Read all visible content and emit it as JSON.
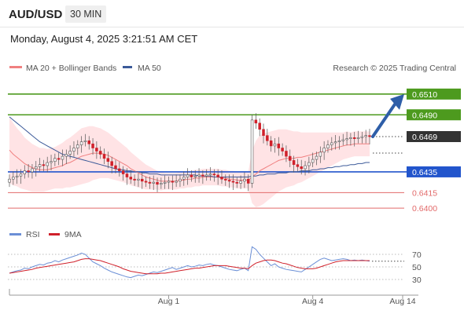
{
  "header": {
    "symbol": "AUD/USD",
    "timeframe": "30 MIN",
    "datetime": "Monday, August 4, 2025 3:21:51 AM CET"
  },
  "legend": {
    "ma20": "MA 20 + Bollinger Bands",
    "ma50": "MA 50",
    "credit": "Research © 2025 Trading Central",
    "rsi": "RSI",
    "rsi_ma": "9MA"
  },
  "colors": {
    "up": "#3f7f3c",
    "down": "#d0202a",
    "ma20": "#f08080",
    "ma50": "#3c5a99",
    "bands": "#ffd9dc",
    "resistance": "#4d9a1e",
    "pivot": "#2255cc",
    "support": "#e26a6a",
    "arrow": "#2e5ea8",
    "current": "#333333",
    "rsi": "#6b8fd6",
    "rsi_ma": "#d0202a"
  },
  "chart_data": [
    {
      "type": "candlestick",
      "ylim": [
        0.6385,
        0.6525
      ],
      "levels": [
        {
          "value": 0.651,
          "label": "0.6510",
          "kind": "resistance"
        },
        {
          "value": 0.649,
          "label": "0.6490",
          "kind": "resistance"
        },
        {
          "value": 0.6469,
          "label": "0.6469",
          "kind": "current"
        },
        {
          "value": 0.6435,
          "label": "0.6435",
          "kind": "pivot"
        },
        {
          "value": 0.6415,
          "label": "0.6415",
          "kind": "support"
        },
        {
          "value": 0.64,
          "label": "0.6400",
          "kind": "support"
        }
      ],
      "x_ticks": [
        "Aug 1",
        "Aug 4",
        "Aug 14"
      ],
      "tick_positions": [
        42,
        80,
        93
      ],
      "candles_count": 96,
      "close": [
        0.6428,
        0.643,
        0.6431,
        0.6433,
        0.6436,
        0.6435,
        0.6438,
        0.644,
        0.6442,
        0.6441,
        0.6444,
        0.6445,
        0.6448,
        0.6447,
        0.645,
        0.6452,
        0.6455,
        0.6458,
        0.6461,
        0.6464,
        0.6465,
        0.6462,
        0.6458,
        0.6455,
        0.6452,
        0.6448,
        0.6445,
        0.6441,
        0.6438,
        0.6436,
        0.6433,
        0.643,
        0.6428,
        0.6427,
        0.6428,
        0.6426,
        0.6425,
        0.6424,
        0.6425,
        0.6423,
        0.6424,
        0.6425,
        0.6426,
        0.6425,
        0.6426,
        0.6428,
        0.643,
        0.6432,
        0.643,
        0.6431,
        0.6432,
        0.6431,
        0.6432,
        0.6433,
        0.6432,
        0.643,
        0.6428,
        0.6427,
        0.6426,
        0.6425,
        0.6424,
        0.6426,
        0.6428,
        0.6424,
        0.6485,
        0.6482,
        0.6476,
        0.647,
        0.6465,
        0.646,
        0.6462,
        0.6458,
        0.6455,
        0.645,
        0.6446,
        0.6442,
        0.644,
        0.6438,
        0.6441,
        0.6444,
        0.6447,
        0.645,
        0.6454,
        0.6458,
        0.6461,
        0.6463,
        0.6464,
        0.6465,
        0.6466,
        0.6467,
        0.6468,
        0.6467,
        0.6468,
        0.6469,
        0.647,
        0.6469
      ],
      "ma20": [
        0.6456,
        0.6452,
        0.6449,
        0.6446,
        0.6443,
        0.6441,
        0.6439,
        0.6438,
        0.6437,
        0.6437,
        0.6437,
        0.6438,
        0.6439,
        0.644,
        0.6441,
        0.6443,
        0.6444,
        0.6446,
        0.6448,
        0.645,
        0.6451,
        0.6452,
        0.6453,
        0.6453,
        0.6453,
        0.6452,
        0.6451,
        0.6449,
        0.6447,
        0.6445,
        0.6443,
        0.6441,
        0.6438,
        0.6436,
        0.6434,
        0.6432,
        0.643,
        0.6429,
        0.6428,
        0.6427,
        0.6426,
        0.6426,
        0.6426,
        0.6426,
        0.6426,
        0.6427,
        0.6427,
        0.6428,
        0.6428,
        0.6429,
        0.6429,
        0.643,
        0.643,
        0.643,
        0.643,
        0.643,
        0.6429,
        0.6429,
        0.6428,
        0.6428,
        0.6427,
        0.6427,
        0.6427,
        0.6427,
        0.643,
        0.6433,
        0.6436,
        0.6438,
        0.644,
        0.6442,
        0.6444,
        0.6446,
        0.6447,
        0.6448,
        0.6448,
        0.6448,
        0.6449,
        0.6449,
        0.645,
        0.6451,
        0.6452,
        0.6453,
        0.6454,
        0.6455,
        0.6456,
        0.6457,
        0.6458,
        0.6459,
        0.646,
        0.6461,
        0.6461,
        0.6462,
        0.6462,
        0.6462,
        0.6462,
        0.6462
      ],
      "band_width": [
        0.0032,
        0.003,
        0.0028,
        0.0027,
        0.0025,
        0.0024,
        0.0023,
        0.0022,
        0.0021,
        0.0021,
        0.002,
        0.002,
        0.002,
        0.0021,
        0.0022,
        0.0023,
        0.0024,
        0.0025,
        0.0026,
        0.0027,
        0.0027,
        0.0027,
        0.0026,
        0.0025,
        0.0024,
        0.0023,
        0.0022,
        0.0021,
        0.002,
        0.0019,
        0.0018,
        0.0017,
        0.0016,
        0.0015,
        0.0014,
        0.0013,
        0.0012,
        0.0011,
        0.001,
        0.0009,
        0.0009,
        0.0008,
        0.0008,
        0.0008,
        0.0008,
        0.0008,
        0.0008,
        0.0008,
        0.0008,
        0.0008,
        0.0008,
        0.0008,
        0.0008,
        0.0008,
        0.0008,
        0.0008,
        0.0008,
        0.0008,
        0.0008,
        0.0008,
        0.0008,
        0.0008,
        0.0008,
        0.0008,
        0.0025,
        0.0032,
        0.0034,
        0.0034,
        0.0033,
        0.0032,
        0.0031,
        0.003,
        0.0029,
        0.0028,
        0.0027,
        0.0026,
        0.0025,
        0.0024,
        0.0023,
        0.0022,
        0.0021,
        0.002,
        0.0019,
        0.0018,
        0.0017,
        0.0016,
        0.0015,
        0.0014,
        0.0013,
        0.0013,
        0.0012,
        0.0012,
        0.0012,
        0.0012,
        0.0012,
        0.0012
      ],
      "ma50": [
        0.6488,
        0.6485,
        0.6482,
        0.6479,
        0.6476,
        0.6473,
        0.647,
        0.6467,
        0.6464,
        0.6462,
        0.646,
        0.6458,
        0.6456,
        0.6454,
        0.6452,
        0.6451,
        0.645,
        0.6449,
        0.6448,
        0.6447,
        0.6446,
        0.6445,
        0.6444,
        0.6443,
        0.6442,
        0.6441,
        0.644,
        0.6439,
        0.6438,
        0.6437,
        0.6437,
        0.6436,
        0.6436,
        0.6435,
        0.6435,
        0.6434,
        0.6434,
        0.6433,
        0.6433,
        0.6433,
        0.6432,
        0.6432,
        0.6432,
        0.6432,
        0.6432,
        0.6432,
        0.6432,
        0.6432,
        0.6432,
        0.6432,
        0.6431,
        0.6431,
        0.6431,
        0.6431,
        0.643,
        0.643,
        0.643,
        0.643,
        0.643,
        0.643,
        0.643,
        0.643,
        0.643,
        0.643,
        0.6431,
        0.6431,
        0.6432,
        0.6432,
        0.6433,
        0.6433,
        0.6433,
        0.6434,
        0.6434,
        0.6434,
        0.6435,
        0.6435,
        0.6435,
        0.6436,
        0.6436,
        0.6436,
        0.6437,
        0.6437,
        0.6438,
        0.6438,
        0.6439,
        0.6439,
        0.644,
        0.644,
        0.6441,
        0.6441,
        0.6442,
        0.6442,
        0.6443,
        0.6443,
        0.6444,
        0.6444
      ]
    },
    {
      "type": "line",
      "yticks": [
        70,
        50,
        30
      ],
      "ylim": [
        15,
        85
      ],
      "rsi": [
        40,
        42,
        44,
        45,
        48,
        47,
        50,
        52,
        54,
        53,
        56,
        57,
        60,
        58,
        61,
        63,
        65,
        67,
        69,
        72,
        70,
        64,
        58,
        55,
        52,
        48,
        45,
        42,
        40,
        38,
        36,
        34,
        33,
        35,
        37,
        36,
        38,
        40,
        42,
        41,
        43,
        45,
        47,
        49,
        46,
        48,
        50,
        52,
        50,
        51,
        53,
        52,
        54,
        55,
        53,
        52,
        50,
        48,
        46,
        45,
        44,
        46,
        48,
        44,
        82,
        78,
        70,
        64,
        58,
        52,
        55,
        50,
        48,
        46,
        45,
        44,
        43,
        42,
        46,
        50,
        54,
        58,
        62,
        64,
        62,
        60,
        61,
        62,
        63,
        62,
        60,
        61,
        60,
        61,
        60,
        59
      ],
      "rsi_ma": [
        40,
        41,
        42,
        43,
        44,
        45,
        46,
        48,
        49,
        50,
        51,
        52,
        53,
        54,
        55,
        56,
        57,
        58,
        60,
        62,
        63,
        63,
        62,
        61,
        60,
        58,
        56,
        54,
        52,
        50,
        47,
        45,
        43,
        42,
        41,
        40,
        39,
        39,
        39,
        39,
        40,
        40,
        41,
        42,
        43,
        44,
        45,
        46,
        47,
        48,
        48,
        49,
        50,
        51,
        52,
        52,
        52,
        52,
        51,
        50,
        49,
        48,
        48,
        47,
        52,
        56,
        58,
        60,
        61,
        61,
        60,
        58,
        56,
        55,
        53,
        51,
        49,
        48,
        47,
        47,
        47,
        48,
        50,
        52,
        54,
        56,
        58,
        59,
        60,
        60,
        60,
        60,
        60,
        60,
        60,
        60
      ]
    }
  ]
}
